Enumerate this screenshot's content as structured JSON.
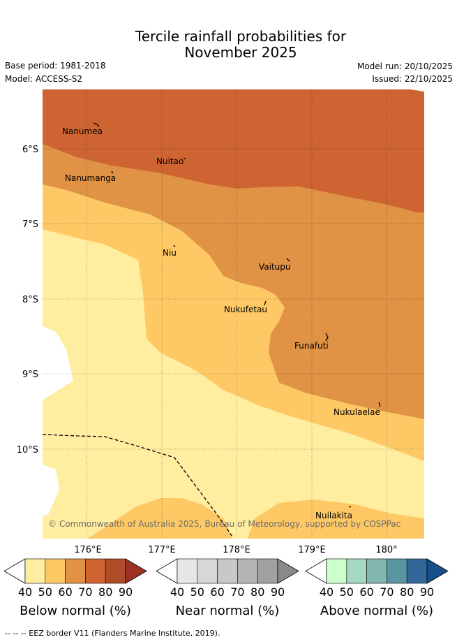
{
  "title_line1": "Tercile rainfall probabilities for",
  "title_line2": "November 2025",
  "base_period": "Base period: 1981-2018",
  "model": "Model: ACCESS-S2",
  "model_run": "Model run: 20/10/2025",
  "issued": "Issued: 22/10/2025",
  "lat_labels": [
    "6°S",
    "7°S",
    "8°S",
    "9°S",
    "10°S"
  ],
  "lon_labels": [
    "176°E",
    "177°E",
    "178°E",
    "179°E",
    "180°"
  ],
  "places": [
    "Nanumea",
    "Nuitao",
    "Nanumanga",
    "Niu",
    "Vaitupu",
    "Nukufetau",
    "Funafuti",
    "Nukulaelae",
    "Nuilakita"
  ],
  "copyright": "© Commonwealth of Australia 2025, Bureau of Meteorology, supported by COSPPac",
  "legends": [
    {
      "title": "Below normal (%)",
      "ticks": [
        "40",
        "50",
        "60",
        "70",
        "80",
        "90"
      ],
      "colors": [
        "#ffeda0",
        "#fec965",
        "#e09245",
        "#cd6432",
        "#b14c2a",
        "#9b3222"
      ]
    },
    {
      "title": "Near normal (%)",
      "ticks": [
        "40",
        "50",
        "60",
        "70",
        "80",
        "90"
      ],
      "colors": [
        "#e6e6e6",
        "#d7d7d7",
        "#c8c8c8",
        "#b4b4b4",
        "#a0a0a0",
        "#8a8a8a"
      ]
    },
    {
      "title": "Above normal (%)",
      "ticks": [
        "40",
        "50",
        "60",
        "70",
        "80",
        "90"
      ],
      "colors": [
        "#ccffcc",
        "#a3d9be",
        "#82b8b1",
        "#5a96a1",
        "#336699",
        "#15508a"
      ]
    }
  ],
  "footnote": "--  --  -- EEZ border V11 (Flanders Marine Institute, 2019)."
}
